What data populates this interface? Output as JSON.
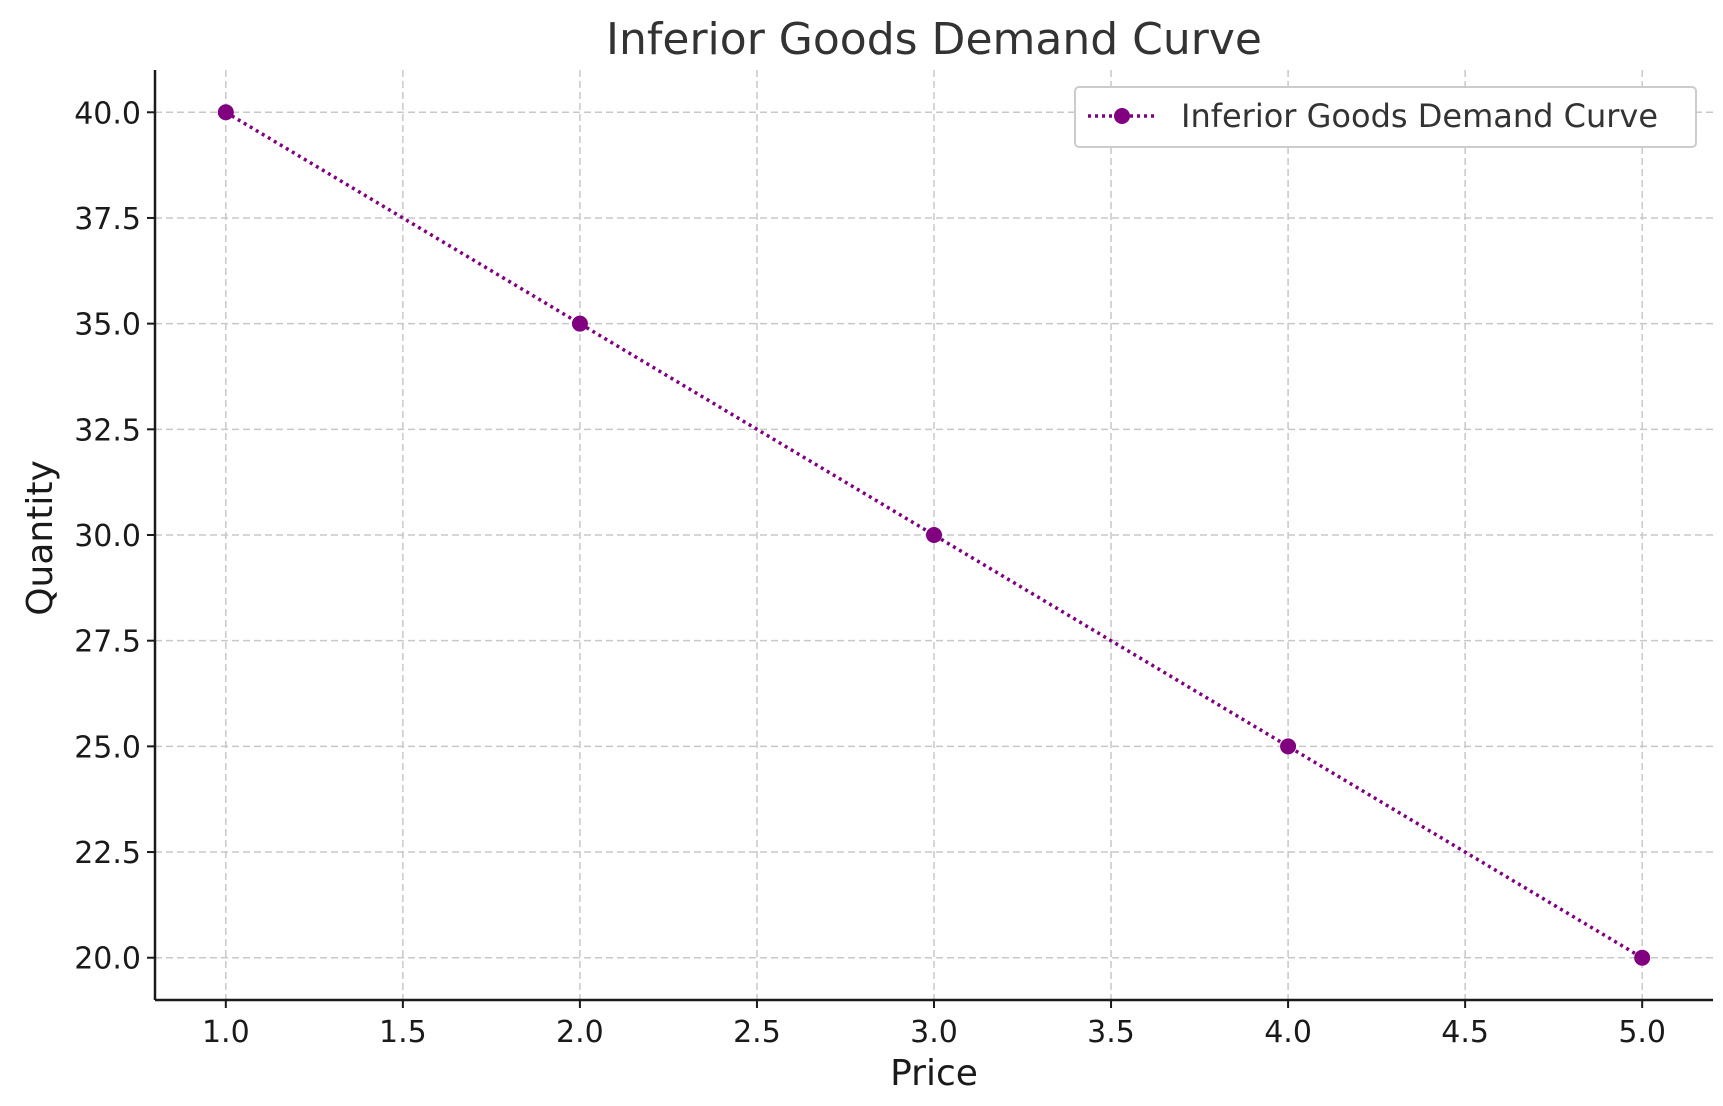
{
  "chart_data": {
    "type": "line",
    "title": "Inferior Goods Demand Curve",
    "xlabel": "Price",
    "ylabel": "Quantity",
    "xlim": [
      0.8,
      5.2
    ],
    "ylim": [
      19.0,
      41.0
    ],
    "x_ticks": [
      1.0,
      1.5,
      2.0,
      2.5,
      3.0,
      3.5,
      4.0,
      4.5,
      5.0
    ],
    "x_tick_labels": [
      "1.0",
      "1.5",
      "2.0",
      "2.5",
      "3.0",
      "3.5",
      "4.0",
      "4.5",
      "5.0"
    ],
    "y_ticks": [
      20.0,
      22.5,
      25.0,
      27.5,
      30.0,
      32.5,
      35.0,
      37.5,
      40.0
    ],
    "y_tick_labels": [
      "20.0",
      "22.5",
      "25.0",
      "27.5",
      "30.0",
      "32.5",
      "35.0",
      "37.5",
      "40.0"
    ],
    "grid": true,
    "legend_position": "top-right",
    "series": [
      {
        "name": "Inferior Goods Demand Curve",
        "x": [
          1,
          2,
          3,
          4,
          5
        ],
        "y": [
          40,
          35,
          30,
          25,
          20
        ],
        "color": "#800080",
        "line_style": "dotted",
        "marker": "circle"
      }
    ]
  }
}
